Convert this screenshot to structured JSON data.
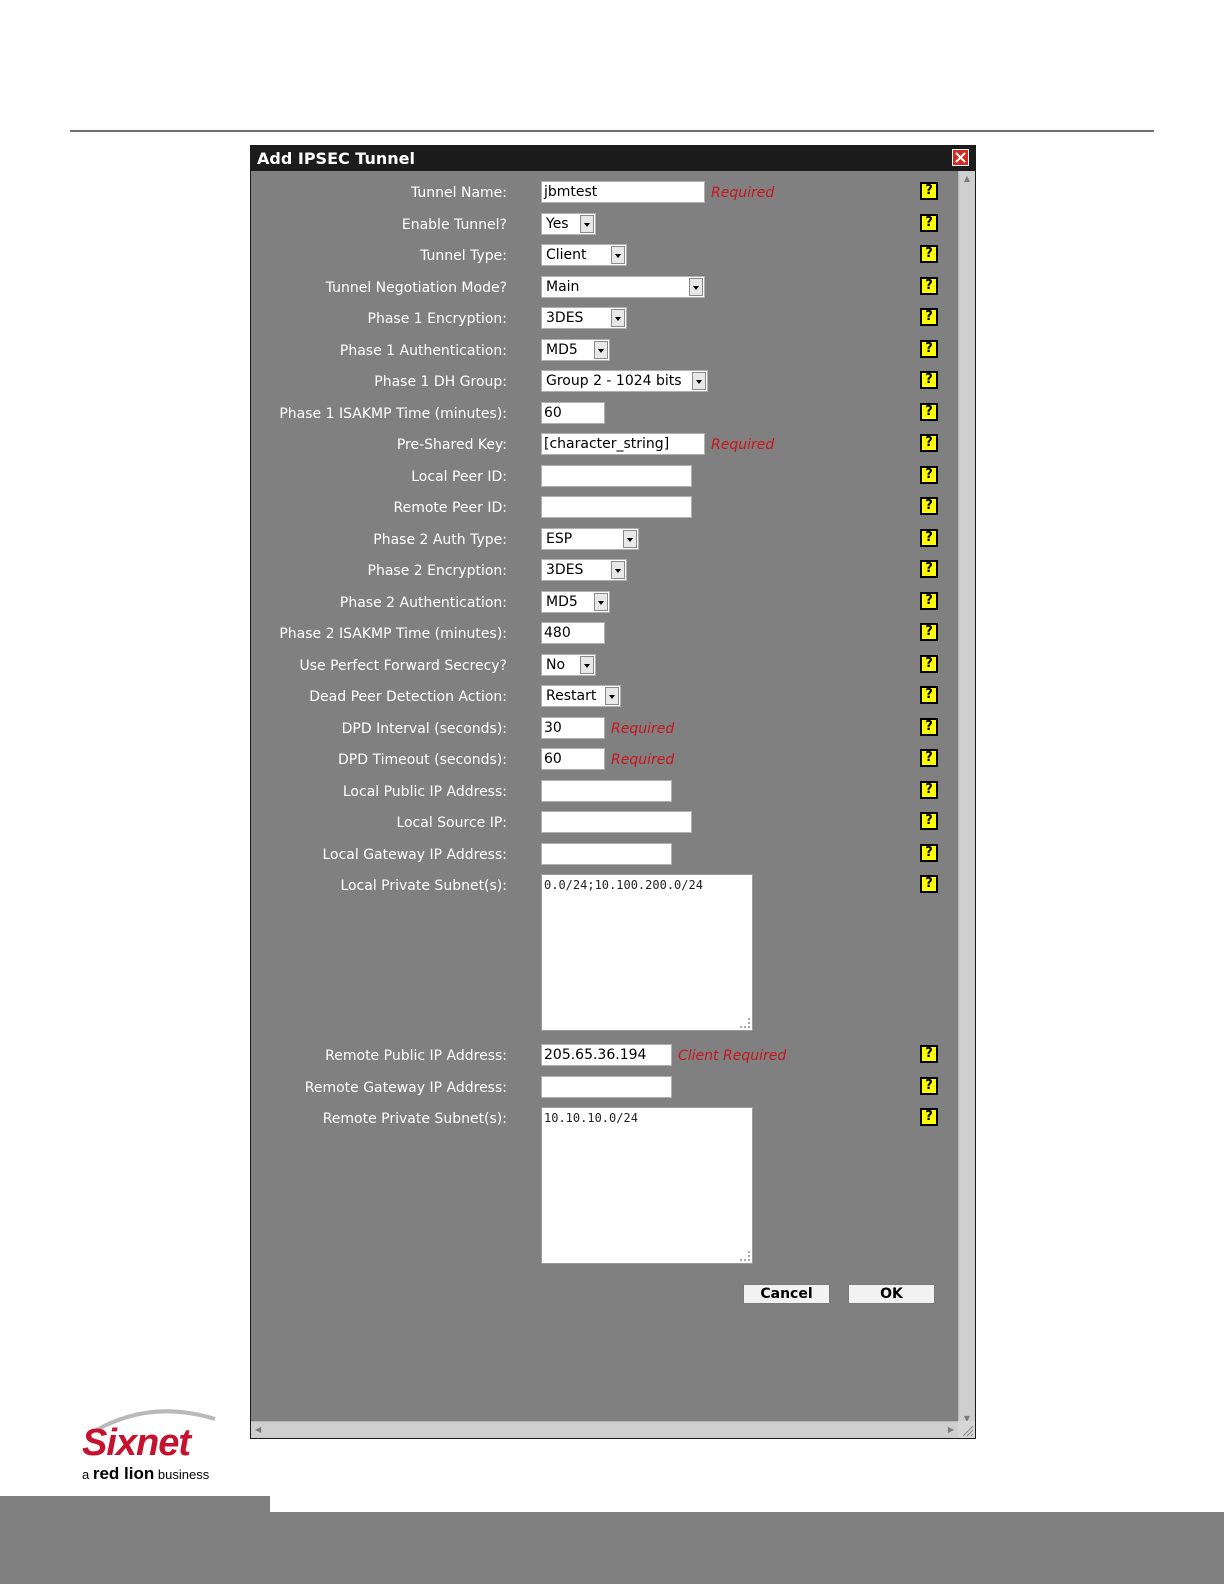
{
  "dialog": {
    "title": "Add IPSEC Tunnel",
    "close_icon": "close-icon",
    "help_glyph": "?"
  },
  "fields": {
    "tunnel_name": {
      "label": "Tunnel Name:",
      "value": "jbmtest",
      "note": "Required"
    },
    "enable_tunnel": {
      "label": "Enable Tunnel?",
      "value": "Yes"
    },
    "tunnel_type": {
      "label": "Tunnel Type:",
      "value": "Client"
    },
    "negotiation_mode": {
      "label": "Tunnel Negotiation Mode?",
      "value": "Main"
    },
    "p1_encryption": {
      "label": "Phase 1 Encryption:",
      "value": "3DES"
    },
    "p1_auth": {
      "label": "Phase 1 Authentication:",
      "value": "MD5"
    },
    "p1_dh_group": {
      "label": "Phase 1 DH Group:",
      "value": "Group 2 - 1024 bits"
    },
    "p1_isakmp_time": {
      "label": "Phase 1 ISAKMP Time (minutes):",
      "value": "60"
    },
    "psk": {
      "label": "Pre-Shared Key:",
      "value": "[character_string]",
      "note": "Required"
    },
    "local_peer_id": {
      "label": "Local Peer ID:",
      "value": ""
    },
    "remote_peer_id": {
      "label": "Remote Peer ID:",
      "value": ""
    },
    "p2_auth_type": {
      "label": "Phase 2 Auth Type:",
      "value": "ESP"
    },
    "p2_encryption": {
      "label": "Phase 2 Encryption:",
      "value": "3DES"
    },
    "p2_auth": {
      "label": "Phase 2 Authentication:",
      "value": "MD5"
    },
    "p2_isakmp_time": {
      "label": "Phase 2 ISAKMP Time (minutes):",
      "value": "480"
    },
    "pfs": {
      "label": "Use Perfect Forward Secrecy?",
      "value": "No"
    },
    "dpd_action": {
      "label": "Dead Peer Detection Action:",
      "value": "Restart"
    },
    "dpd_interval": {
      "label": "DPD Interval (seconds):",
      "value": "30",
      "note": "Required"
    },
    "dpd_timeout": {
      "label": "DPD Timeout (seconds):",
      "value": "60",
      "note": "Required"
    },
    "local_public_ip": {
      "label": "Local Public IP Address:",
      "value": ""
    },
    "local_source_ip": {
      "label": "Local Source IP:",
      "value": ""
    },
    "local_gateway_ip": {
      "label": "Local Gateway IP Address:",
      "value": ""
    },
    "local_private_subnets": {
      "label": "Local Private Subnet(s):",
      "value": "0.0/24;10.100.200.0/24"
    },
    "remote_public_ip": {
      "label": "Remote Public IP Address:",
      "value": "205.65.36.194",
      "note": "Client Required"
    },
    "remote_gateway_ip": {
      "label": "Remote Gateway IP Address:",
      "value": ""
    },
    "remote_private_subnets": {
      "label": "Remote Private Subnet(s):",
      "value": "10.10.10.0/24"
    }
  },
  "buttons": {
    "cancel": "Cancel",
    "ok": "OK"
  },
  "logo": {
    "brand": "Sixnet",
    "sub_prefix": "a",
    "sub_brand": "red lion",
    "sub_suffix": "business"
  },
  "colors": {
    "dialog_bg": "#808080",
    "titlebar": "#1c1c1c",
    "required_text": "#c8141e",
    "help_icon": "#ffff00",
    "brand_red": "#c4122f"
  }
}
